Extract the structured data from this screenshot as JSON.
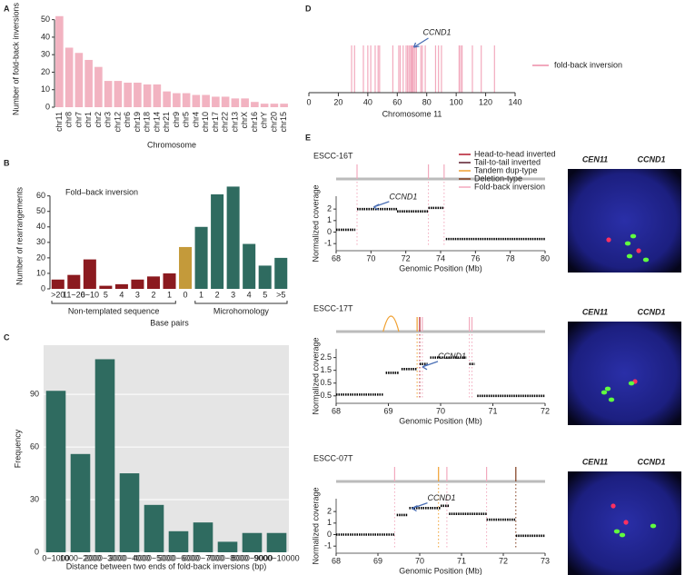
{
  "panel_labels": [
    "A",
    "B",
    "C",
    "D",
    "E"
  ],
  "sv_legend": [
    {
      "name": "Head-to-head inverted",
      "color": "#b2182b"
    },
    {
      "name": "Tail-to-tail inverted",
      "color": "#5a1a2a"
    },
    {
      "name": "Tandem dup-type",
      "color": "#f0a030"
    },
    {
      "name": "Deletion-type",
      "color": "#7f3a1a"
    },
    {
      "name": "Fold-back inversion",
      "color": "#f2a9bd"
    }
  ],
  "chart_data": [
    {
      "type": "bar",
      "categories": [
        "chr11",
        "chr8",
        "chr7",
        "chr1",
        "chr2",
        "chr3",
        "chr12",
        "chr6",
        "chr19",
        "chr18",
        "chr14",
        "chr21",
        "chr9",
        "chr5",
        "chr4",
        "chr10",
        "chr17",
        "chr22",
        "chr13",
        "chrX",
        "chr16",
        "chrY",
        "chr20",
        "chr15"
      ],
      "values": [
        52,
        34,
        31,
        27,
        23,
        15,
        15,
        14,
        14,
        13,
        13,
        9,
        8,
        8,
        7,
        7,
        6,
        6,
        5,
        5,
        3,
        2,
        2,
        2
      ],
      "color": "#f2b3c1",
      "ylim": [
        0,
        55
      ],
      "yticks": [
        0,
        10,
        20,
        30,
        40,
        50
      ],
      "ylabel": "Number of fold-back inversions",
      "xlabel": "Chromosome"
    },
    {
      "type": "bar",
      "title": "Fold–back inversion",
      "categories": [
        ">20",
        "11~20",
        "6~10",
        "5",
        "4",
        "3",
        "2",
        "1",
        "0",
        "1",
        "2",
        "3",
        "4",
        "5",
        ">5"
      ],
      "values": [
        6,
        9,
        19,
        2,
        3,
        6,
        8,
        10,
        27,
        40,
        61,
        66,
        29,
        15,
        20
      ],
      "colors": [
        "#8b1a1f",
        "#8b1a1f",
        "#8b1a1f",
        "#8b1a1f",
        "#8b1a1f",
        "#8b1a1f",
        "#8b1a1f",
        "#8b1a1f",
        "#c49a3a",
        "#2f6b60",
        "#2f6b60",
        "#2f6b60",
        "#2f6b60",
        "#2f6b60",
        "#2f6b60"
      ],
      "ylim": [
        0,
        68
      ],
      "yticks": [
        0,
        10,
        20,
        30,
        40,
        50,
        60
      ],
      "ylabel": "Number of rearrangements",
      "xlabel": "Base pairs",
      "groups": [
        "Non-templated sequence",
        "Microhomology"
      ]
    },
    {
      "type": "bar",
      "categories": [
        "0~1000",
        "1000~2000",
        "2000~3000",
        "3000~4000",
        "4000~5000",
        "5000~6000",
        "6000~7000",
        "7000~8000",
        "8000~9000",
        "9000~10000"
      ],
      "values": [
        92,
        56,
        110,
        45,
        27,
        12,
        17,
        6,
        11,
        11
      ],
      "color": "#2f6b60",
      "ylim": [
        0,
        118
      ],
      "yticks": [
        0,
        30,
        60,
        90
      ],
      "grid": true,
      "background": "#e5e5e5",
      "ylabel": "Frequency",
      "xlabel": "Distance between two ends of fold-back inversions (bp)"
    },
    {
      "type": "event_positions",
      "positions": [
        29,
        31,
        37,
        40,
        42,
        45,
        47,
        48,
        57,
        61,
        62,
        64,
        66,
        67,
        68,
        69,
        69.5,
        70,
        70.5,
        71,
        72,
        73,
        76,
        77,
        79,
        86,
        88,
        90,
        102,
        103,
        104,
        111,
        117,
        126
      ],
      "color": "#f2a9bd",
      "xlim": [
        0,
        140
      ],
      "xticks": [
        0,
        20,
        40,
        60,
        80,
        100,
        120,
        140
      ],
      "xlabel": "Chromosome 11",
      "annotation": {
        "text": "CCND1",
        "x": 70
      },
      "legend": "fold-back inversion"
    },
    {
      "type": "coverage",
      "title": "ESCC-16T",
      "segments": [
        {
          "start": 68,
          "end": 69.1,
          "value": 0.2
        },
        {
          "start": 69.2,
          "end": 71.5,
          "value": 2.0
        },
        {
          "start": 71.5,
          "end": 73.3,
          "value": 1.8
        },
        {
          "start": 73.3,
          "end": 74.2,
          "value": 2.1
        },
        {
          "start": 74.3,
          "end": 80,
          "value": -0.6
        }
      ],
      "events": [
        {
          "position": 69.2,
          "color": "#f2a9bd"
        },
        {
          "position": 73.3,
          "color": "#f2a9bd"
        },
        {
          "position": 74.2,
          "color": "#f2a9bd"
        }
      ],
      "xlim": [
        68,
        80
      ],
      "xticks": [
        68,
        70,
        72,
        74,
        76,
        78,
        80
      ],
      "ylim": [
        -1.3,
        2.8
      ],
      "yticks": [
        -1,
        0,
        1,
        2
      ],
      "xlabel": "Genomic Position (Mb)",
      "ylabel": "Normalized coverage",
      "annotation": {
        "text": "CCND1",
        "x": 70,
        "y": 2.1
      },
      "fish_labels": [
        "CEN11",
        "CCND1"
      ]
    },
    {
      "type": "coverage",
      "title": "ESCC-17T",
      "segments": [
        {
          "start": 68,
          "end": 68.9,
          "value": -0.4
        },
        {
          "start": 68.95,
          "end": 69.2,
          "value": 1.3
        },
        {
          "start": 69.25,
          "end": 69.55,
          "value": 1.6
        },
        {
          "start": 69.6,
          "end": 69.75,
          "value": 2.0
        },
        {
          "start": 69.8,
          "end": 70.5,
          "value": 2.5
        },
        {
          "start": 70.55,
          "end": 70.65,
          "value": 2.0
        },
        {
          "start": 70.7,
          "end": 72,
          "value": -0.5
        }
      ],
      "events": [
        {
          "position": 69.55,
          "color": "#f0a030"
        },
        {
          "position": 69.6,
          "color": "#b2182b"
        },
        {
          "position": 69.65,
          "color": "#f2a9bd"
        },
        {
          "position": 70.55,
          "color": "#f2a9bd"
        },
        {
          "position": 70.6,
          "color": "#f2a9bd"
        }
      ],
      "arcs": [
        {
          "start": 68.9,
          "end": 69.2,
          "color": "#f0a030"
        }
      ],
      "xlim": [
        68,
        72
      ],
      "xticks": [
        68,
        69,
        70,
        71,
        72
      ],
      "ylim": [
        -0.8,
        2.9
      ],
      "yticks": [
        -0.5,
        0.5,
        1.5,
        2.5
      ],
      "xlabel": "Genomic Position (Mb)",
      "ylabel": "Normalized coverage",
      "annotation": {
        "text": "CCND1",
        "x": 69.6,
        "y": 1.7
      },
      "fish_labels": [
        "CEN11",
        "CCND1"
      ]
    },
    {
      "type": "coverage",
      "title": "ESCC-07T",
      "segments": [
        {
          "start": 68,
          "end": 69.4,
          "value": 0
        },
        {
          "start": 69.45,
          "end": 69.7,
          "value": 1.7
        },
        {
          "start": 69.75,
          "end": 70.5,
          "value": 2.3
        },
        {
          "start": 70.5,
          "end": 70.7,
          "value": 2.5
        },
        {
          "start": 70.7,
          "end": 71.6,
          "value": 1.8
        },
        {
          "start": 71.6,
          "end": 72.3,
          "value": 1.3
        },
        {
          "start": 72.3,
          "end": 73,
          "value": -0.1
        }
      ],
      "events": [
        {
          "position": 69.4,
          "color": "#f2a9bd"
        },
        {
          "position": 70.45,
          "color": "#f0a030"
        },
        {
          "position": 70.65,
          "color": "#f2a9bd"
        },
        {
          "position": 71.6,
          "color": "#f2a9bd"
        },
        {
          "position": 72.3,
          "color": "#7f3a1a"
        }
      ],
      "xlim": [
        68,
        73
      ],
      "xticks": [
        68,
        69,
        70,
        71,
        72,
        73
      ],
      "ylim": [
        -1.3,
        2.8
      ],
      "yticks": [
        -1,
        0,
        1,
        2
      ],
      "xlabel": "Genomic Position (Mb)",
      "ylabel": "Normalized coverage",
      "annotation": {
        "text": "CCND1",
        "x": 69.75,
        "y": 2.2
      },
      "fish_labels": [
        "CEN11",
        "CCND1"
      ]
    }
  ]
}
